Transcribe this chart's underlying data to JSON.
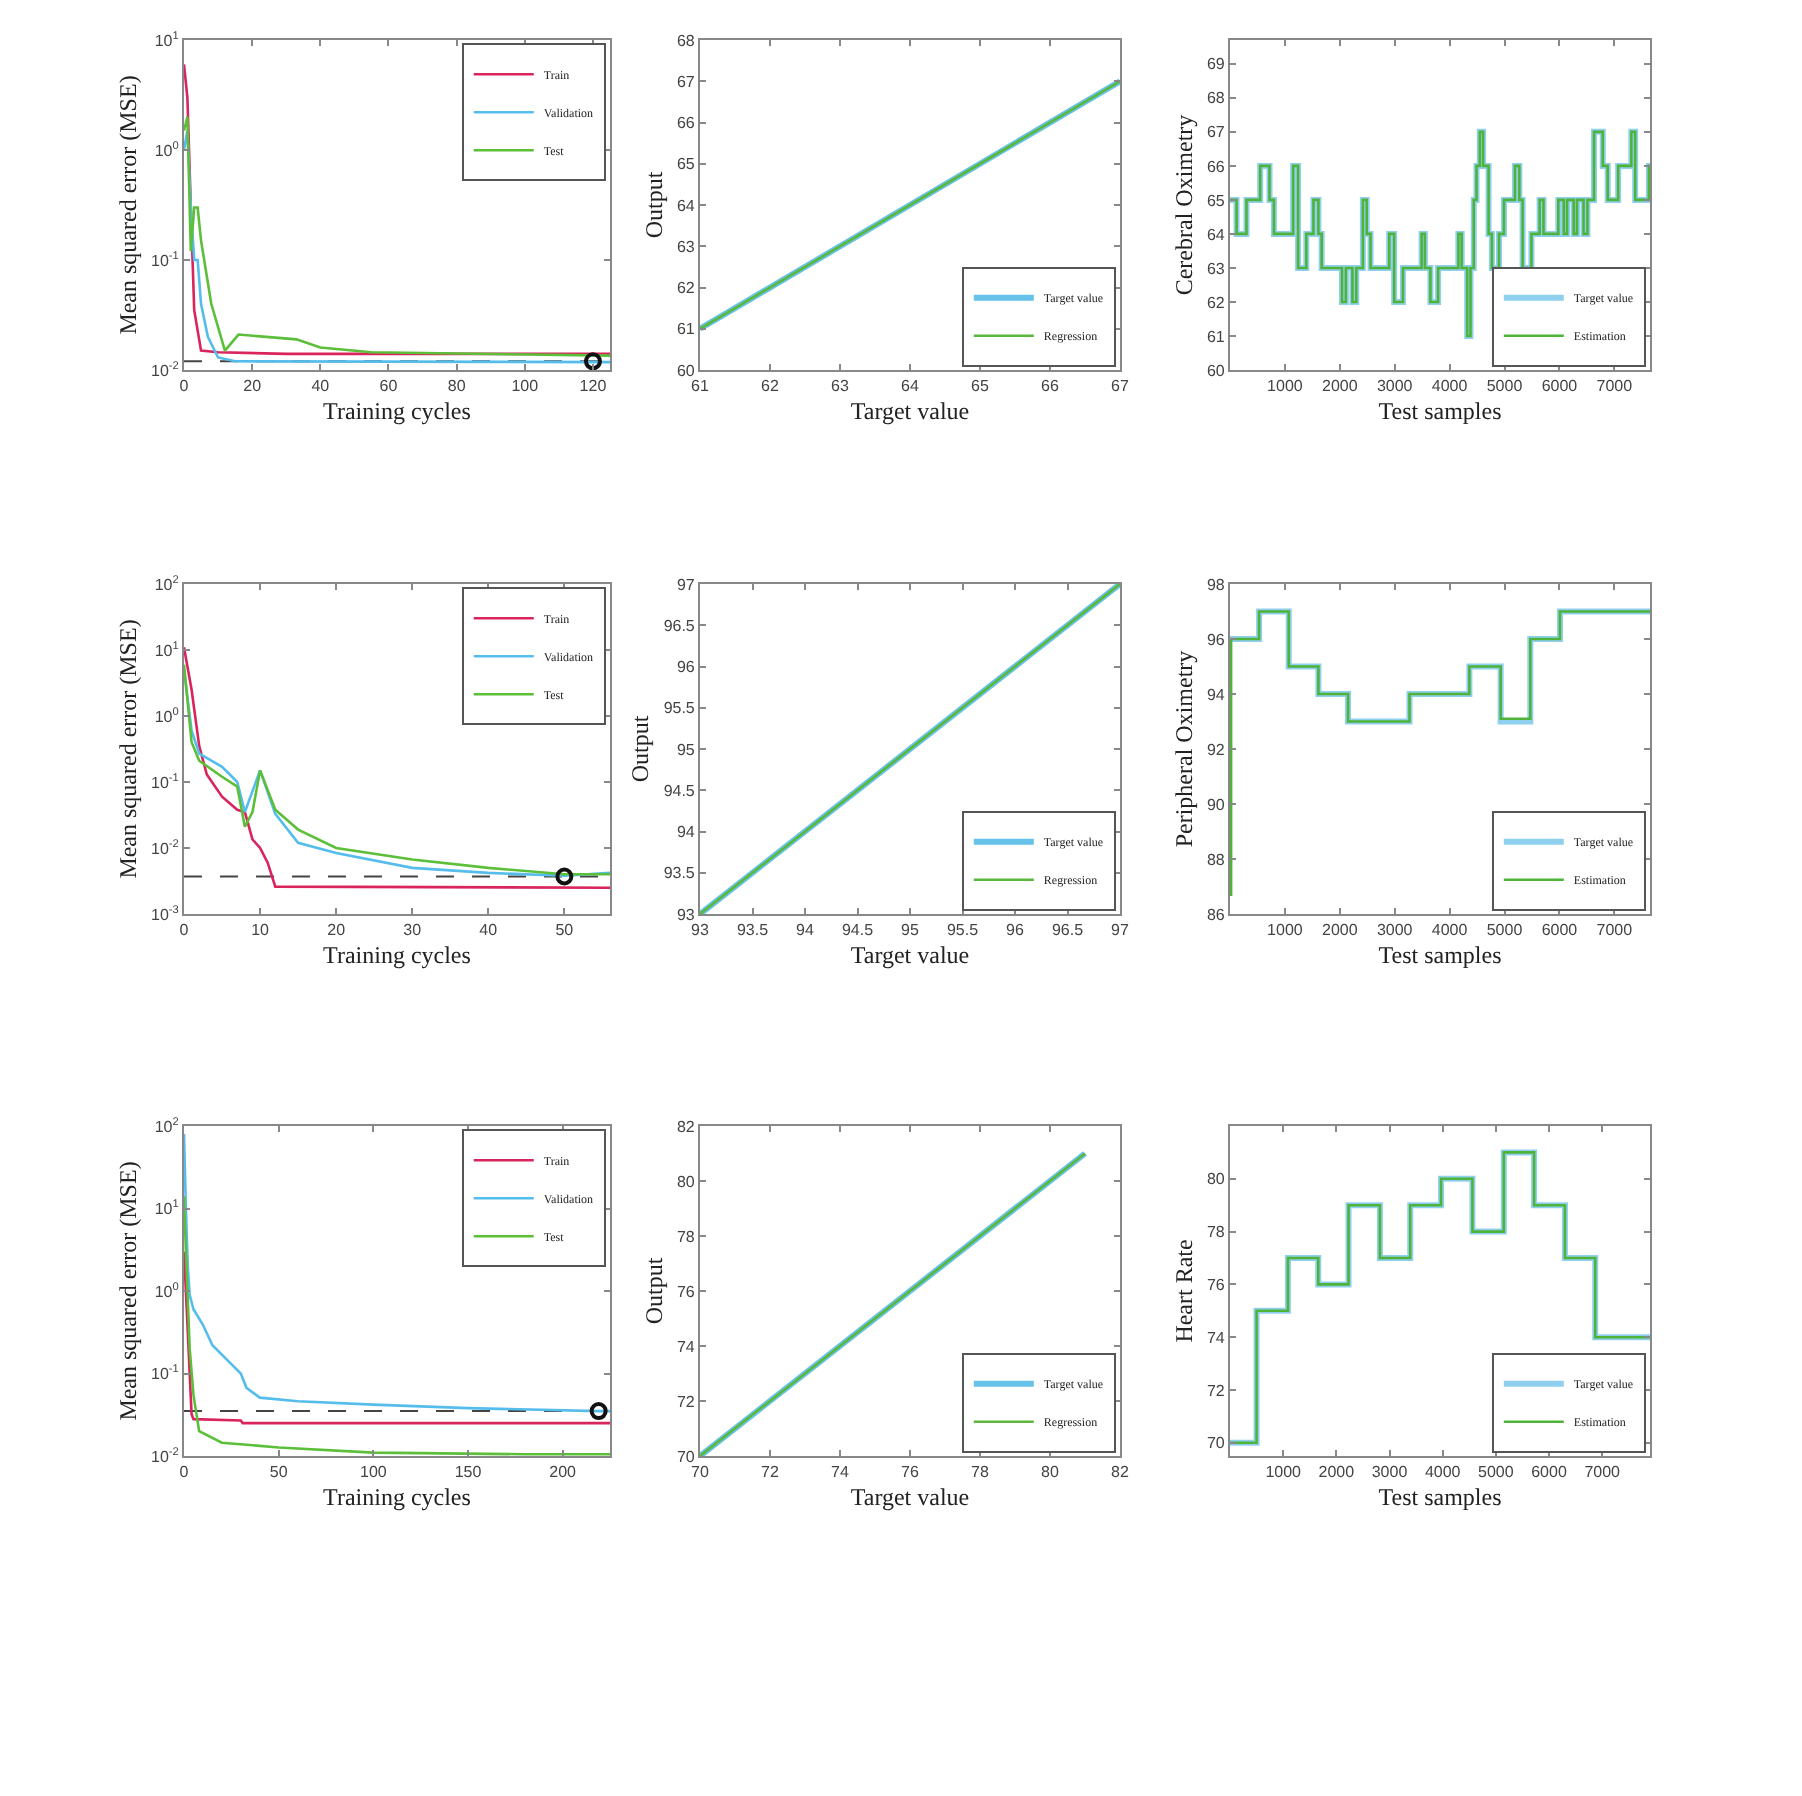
{
  "chart_data": [
    {
      "type": "line",
      "xlabel": "Training cycles",
      "ylabel": "Mean squared error (MSE)",
      "log": "y",
      "xlim": [
        0,
        125
      ],
      "xticks": [
        0,
        20,
        40,
        60,
        80,
        100,
        120
      ],
      "ylim": [
        0.01,
        10
      ],
      "yticks": [
        {
          "value": 0.01,
          "label": "10$^{-2}$"
        },
        {
          "value": 0.1,
          "label": "10$^{-1}$"
        },
        {
          "value": 1,
          "label": "10$^{0}$"
        },
        {
          "value": 10,
          "label": "10$^{1}$"
        }
      ],
      "legend": "top right",
      "line_style": "solid",
      "ref_lines": [
        {
          "axis": "y",
          "value": 0.012,
          "color": "#444444",
          "line_style": "dashed"
        }
      ],
      "series": [
        {
          "name": "Train",
          "color": "#d9245c",
          "x": [
            0,
            1,
            2,
            3,
            5,
            10,
            30,
            125
          ],
          "values": [
            6,
            3,
            0.3,
            0.035,
            0.015,
            0.0145,
            0.014,
            0.014
          ]
        },
        {
          "name": "Validation",
          "color": "#55bdec",
          "x": [
            0,
            1,
            2,
            3,
            4,
            5,
            7,
            10,
            15,
            125
          ],
          "values": [
            1,
            1.5,
            0.3,
            0.1,
            0.1,
            0.04,
            0.02,
            0.013,
            0.012,
            0.0118
          ]
        },
        {
          "name": "Test",
          "color": "#5cbf3a",
          "x": [
            0,
            1,
            2,
            3,
            4,
            5,
            8,
            12,
            16,
            33,
            40,
            55,
            125
          ],
          "values": [
            1.5,
            2,
            0.12,
            0.3,
            0.3,
            0.15,
            0.04,
            0.015,
            0.021,
            0.019,
            0.016,
            0.0145,
            0.0135
          ]
        },
        {
          "type": "scatter",
          "marker": "circle",
          "color": "#111111",
          "x": [
            120
          ],
          "values": [
            0.012
          ]
        }
      ]
    },
    {
      "type": "line",
      "xlabel": "Target value",
      "ylabel": "Output",
      "xlim": [
        61,
        67
      ],
      "xticks": [
        61,
        62,
        63,
        64,
        65,
        66,
        67
      ],
      "ylim": [
        60,
        68
      ],
      "yticks": [
        60,
        61,
        62,
        63,
        64,
        65,
        66,
        67,
        68
      ],
      "legend": "bottom right",
      "line_style": "solid",
      "series": [
        {
          "name": "Target value",
          "color": "#66c2e8",
          "x": [
            61,
            67
          ],
          "values": [
            61,
            67
          ]
        },
        {
          "name": "Regression",
          "color": "#5cb83c",
          "x": [
            61,
            67
          ],
          "values": [
            61,
            67
          ]
        }
      ]
    },
    {
      "type": "step",
      "xlabel": "Test samples",
      "ylabel": "Cerebral Oximetry",
      "xlim": [
        0,
        7650
      ],
      "xticks": [
        1000,
        2000,
        3000,
        4000,
        5000,
        6000,
        7000
      ],
      "ylim": [
        60,
        69.7
      ],
      "yticks": [
        60,
        61,
        62,
        63,
        64,
        65,
        66,
        67,
        68,
        69
      ],
      "legend": "bottom right",
      "line_style": "solid",
      "series": [
        {
          "name": "Target value",
          "color": "#8fd0ef",
          "x": [
            0,
            120,
            300,
            550,
            720,
            800,
            1150,
            1240,
            1390,
            1520,
            1610,
            1670,
            2040,
            2110,
            2230,
            2300,
            2420,
            2490,
            2560,
            2900,
            2990,
            3150,
            3490,
            3550,
            3650,
            3790,
            4160,
            4220,
            4320,
            4380,
            4440,
            4490,
            4550,
            4610,
            4710,
            4770,
            4900,
            4990,
            5190,
            5270,
            5330,
            5490,
            5640,
            5710,
            5980,
            6080,
            6140,
            6260,
            6320,
            6440,
            6510,
            6630,
            6790,
            6880,
            7070,
            7310,
            7380,
            7630,
            7650
          ],
          "values": [
            65,
            64,
            65,
            66,
            65,
            64,
            66,
            63,
            64,
            65,
            64,
            63,
            62,
            63,
            62,
            63,
            65,
            64,
            63,
            64,
            62,
            63,
            64,
            63,
            62,
            63,
            64,
            63,
            61,
            63,
            65,
            66,
            67,
            66,
            64,
            63,
            64,
            65,
            66,
            65,
            63,
            64,
            65,
            64,
            65,
            64,
            65,
            64,
            65,
            64,
            65,
            67,
            66,
            65,
            66,
            67,
            65,
            66,
            66
          ]
        },
        {
          "name": "Estimation",
          "color": "#4fb33a",
          "x": [
            0,
            120,
            300,
            550,
            720,
            800,
            1150,
            1240,
            1390,
            1520,
            1610,
            1670,
            2040,
            2110,
            2230,
            2300,
            2420,
            2490,
            2560,
            2900,
            2990,
            3150,
            3490,
            3550,
            3650,
            3790,
            4160,
            4220,
            4320,
            4380,
            4440,
            4490,
            4550,
            4610,
            4710,
            4770,
            4900,
            4990,
            5190,
            5270,
            5330,
            5490,
            5640,
            5710,
            5980,
            6080,
            6140,
            6260,
            6320,
            6440,
            6510,
            6630,
            6790,
            6880,
            7070,
            7310,
            7380,
            7630,
            7650
          ],
          "values": [
            65,
            64,
            65,
            66,
            65,
            64,
            66,
            63,
            64,
            65,
            64,
            63,
            62,
            63,
            62,
            63,
            65,
            64,
            63,
            64,
            62,
            63,
            64,
            63,
            62,
            63,
            64,
            63,
            61,
            63,
            65,
            66,
            67,
            66,
            64,
            63,
            64,
            65,
            66,
            65,
            63,
            64,
            65,
            64,
            65,
            64,
            65,
            64,
            65,
            64,
            65,
            67,
            66,
            65,
            66,
            67,
            65,
            66,
            66
          ]
        }
      ]
    },
    {
      "type": "line",
      "xlabel": "Training cycles",
      "ylabel": "Mean squared error (MSE)",
      "log": "y",
      "xlim": [
        0,
        56
      ],
      "xticks": [
        0,
        10,
        20,
        30,
        40,
        50
      ],
      "ylim": [
        0.001,
        100
      ],
      "yticks": [
        {
          "value": 0.001,
          "label": "10$^{-3}$"
        },
        {
          "value": 0.01,
          "label": "10$^{-2}$"
        },
        {
          "value": 0.1,
          "label": "10$^{-1}$"
        },
        {
          "value": 1,
          "label": "10$^{0}$"
        },
        {
          "value": 10,
          "label": "10$^{1}$"
        },
        {
          "value": 100,
          "label": "10$^{2}$"
        }
      ],
      "legend": "top right",
      "line_style": "solid",
      "ref_lines": [
        {
          "axis": "y",
          "value": 0.0037,
          "color": "#444444",
          "line_style": "dashed"
        }
      ],
      "series": [
        {
          "name": "Train",
          "color": "#d9245c",
          "x": [
            0,
            1,
            2,
            3,
            5,
            7,
            8,
            9,
            10,
            11,
            12,
            56
          ],
          "values": [
            11,
            2.5,
            0.35,
            0.13,
            0.06,
            0.038,
            0.035,
            0.0135,
            0.01,
            0.006,
            0.0026,
            0.0025
          ]
        },
        {
          "name": "Validation",
          "color": "#55bdec",
          "x": [
            0,
            1,
            2,
            5,
            7,
            8,
            10,
            12,
            15,
            20,
            30,
            40,
            50,
            56
          ],
          "values": [
            5,
            0.6,
            0.27,
            0.17,
            0.1,
            0.035,
            0.15,
            0.033,
            0.012,
            0.0084,
            0.005,
            0.0042,
            0.0038,
            0.0042
          ]
        },
        {
          "name": "Test",
          "color": "#5cbf3a",
          "x": [
            0,
            1,
            2,
            5,
            7,
            8,
            9,
            10,
            12,
            15,
            20,
            30,
            40,
            50,
            56
          ],
          "values": [
            6,
            0.4,
            0.21,
            0.12,
            0.085,
            0.021,
            0.035,
            0.15,
            0.038,
            0.019,
            0.01,
            0.0067,
            0.005,
            0.004,
            0.004
          ]
        },
        {
          "type": "scatter",
          "marker": "circle",
          "color": "#111111",
          "x": [
            50
          ],
          "values": [
            0.0037
          ]
        }
      ]
    },
    {
      "type": "line",
      "xlabel": "Target value",
      "ylabel": "Output",
      "xlim": [
        93,
        97
      ],
      "xticks": [
        93,
        93.5,
        94,
        94.5,
        95,
        95.5,
        96,
        96.5,
        97
      ],
      "ylim": [
        93,
        97
      ],
      "yticks": [
        93,
        93.5,
        94,
        94.5,
        95,
        95.5,
        96,
        96.5,
        97
      ],
      "legend": "bottom right",
      "line_style": "solid",
      "series": [
        {
          "name": "Target value",
          "color": "#66c2e8",
          "x": [
            93,
            97
          ],
          "values": [
            93,
            97
          ]
        },
        {
          "name": "Regression",
          "color": "#5cb83c",
          "x": [
            93,
            97
          ],
          "values": [
            93,
            97
          ]
        }
      ]
    },
    {
      "type": "step",
      "xlabel": "Test samples",
      "ylabel": "Peripheral Oximetry",
      "xlim": [
        0,
        7650
      ],
      "xticks": [
        1000,
        2000,
        3000,
        4000,
        5000,
        6000,
        7000
      ],
      "ylim": [
        86,
        98
      ],
      "yticks": [
        86,
        88,
        90,
        92,
        94,
        96,
        98
      ],
      "legend": "bottom right",
      "line_style": "solid",
      "series": [
        {
          "name": "Target value",
          "color": "#8fd0ef",
          "x": [
            0,
            530,
            1070,
            1610,
            2150,
            3270,
            4360,
            4930,
            5470,
            6010,
            7650
          ],
          "values": [
            96,
            97,
            95,
            94,
            93,
            94,
            95,
            93,
            96,
            97,
            97
          ]
        },
        {
          "name": "Estimation",
          "color": "#4fb33a",
          "x": [
            0,
            20,
            530,
            1070,
            1610,
            2150,
            3270,
            4360,
            4930,
            5470,
            6010,
            7650
          ],
          "values": [
            86.7,
            96,
            97,
            95,
            94,
            93,
            94,
            95,
            93.1,
            96,
            97,
            97
          ]
        }
      ]
    },
    {
      "type": "line",
      "xlabel": "Training cycles",
      "ylabel": "Mean squared error (MSE)",
      "log": "y",
      "xlim": [
        0,
        225
      ],
      "xticks": [
        0,
        50,
        100,
        150,
        200
      ],
      "ylim": [
        0.01,
        100
      ],
      "yticks": [
        {
          "value": 0.01,
          "label": "10$^{-2}$"
        },
        {
          "value": 0.1,
          "label": "10$^{-1}$"
        },
        {
          "value": 1,
          "label": "10$^{0}$"
        },
        {
          "value": 10,
          "label": "10$^{1}$"
        },
        {
          "value": 100,
          "label": "10$^{2}$"
        }
      ],
      "legend": "top right",
      "line_style": "solid",
      "ref_lines": [
        {
          "axis": "y",
          "value": 0.035,
          "color": "#444444",
          "line_style": "dashed"
        }
      ],
      "series": [
        {
          "name": "Train",
          "color": "#d9245c",
          "x": [
            0,
            1,
            3,
            4,
            5,
            30,
            31,
            225
          ],
          "values": [
            3,
            1,
            0.1,
            0.032,
            0.028,
            0.027,
            0.025,
            0.025
          ]
        },
        {
          "name": "Validation",
          "color": "#55bdec",
          "x": [
            0,
            1,
            2,
            3,
            5,
            10,
            15,
            25,
            30,
            33,
            40,
            60,
            100,
            150,
            219,
            225
          ],
          "values": [
            80,
            10,
            2,
            0.9,
            0.6,
            0.39,
            0.22,
            0.13,
            0.1,
            0.067,
            0.051,
            0.046,
            0.042,
            0.038,
            0.035,
            0.035
          ]
        },
        {
          "name": "Test",
          "color": "#5cbf3a",
          "x": [
            0,
            1,
            2,
            3,
            5,
            8,
            20,
            50,
            100,
            180,
            225
          ],
          "values": [
            14,
            3,
            0.8,
            0.2,
            0.055,
            0.02,
            0.0145,
            0.0127,
            0.011,
            0.0105,
            0.0105
          ]
        },
        {
          "type": "scatter",
          "marker": "circle",
          "color": "#111111",
          "x": [
            219
          ],
          "values": [
            0.035
          ]
        }
      ]
    },
    {
      "type": "line",
      "xlabel": "Target value",
      "ylabel": "Output",
      "xlim": [
        70,
        82
      ],
      "xticks": [
        70,
        72,
        74,
        76,
        78,
        80,
        82
      ],
      "ylim": [
        70,
        82
      ],
      "yticks": [
        70,
        72,
        74,
        76,
        78,
        80,
        82
      ],
      "legend": "bottom right",
      "line_style": "solid",
      "series": [
        {
          "name": "Target value",
          "color": "#66c2e8",
          "x": [
            70,
            81
          ],
          "values": [
            70,
            81
          ]
        },
        {
          "name": "Regression",
          "color": "#5cb83c",
          "x": [
            70,
            81
          ],
          "values": [
            70,
            81
          ]
        }
      ]
    },
    {
      "type": "step",
      "xlabel": "Test samples",
      "ylabel": "Heart Rate",
      "xlim": [
        0,
        7900
      ],
      "xticks": [
        1000,
        2000,
        3000,
        4000,
        5000,
        6000,
        7000
      ],
      "ylim": [
        69.5,
        82
      ],
      "yticks": [
        70,
        72,
        74,
        76,
        78,
        80
      ],
      "legend": "bottom right",
      "line_style": "solid",
      "series": [
        {
          "name": "Target value",
          "color": "#8fd0ef",
          "x": [
            0,
            500,
            1090,
            1660,
            2230,
            2820,
            3390,
            3970,
            4560,
            5150,
            5720,
            6300,
            6870,
            7900
          ],
          "values": [
            70,
            75,
            77,
            76,
            79,
            77,
            79,
            80,
            78,
            81,
            79,
            77,
            74,
            74
          ]
        },
        {
          "name": "Estimation",
          "color": "#4fb33a",
          "x": [
            0,
            500,
            1090,
            1660,
            2230,
            2820,
            3390,
            3970,
            4560,
            5150,
            5720,
            6300,
            6870,
            7900
          ],
          "values": [
            70,
            75,
            77,
            76,
            79,
            77,
            79,
            80,
            78,
            81,
            79,
            77,
            74,
            74
          ]
        }
      ]
    }
  ]
}
